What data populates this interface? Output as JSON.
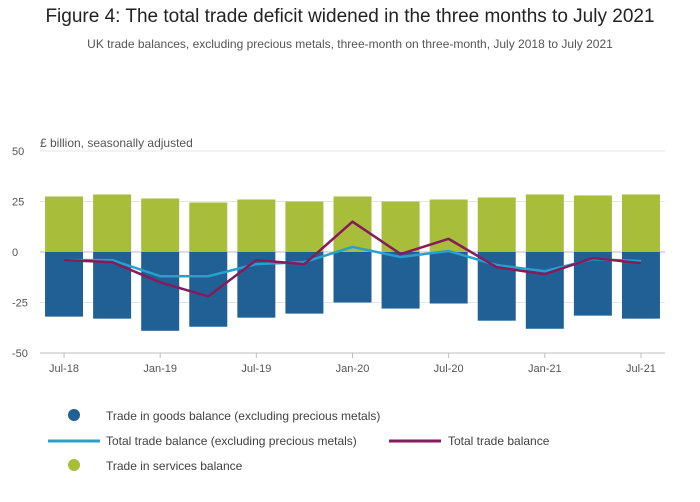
{
  "title": "Figure 4: The total trade deficit widened in the three months to July 2021",
  "subtitle": "UK trade balances, excluding precious metals, three-month on three-month, July 2018 to July 2021",
  "colors": {
    "goods": "#206095",
    "services": "#a8bd3a",
    "total_excl": "#27a0cc",
    "total": "#871a5b",
    "grid": "#e6e6e6",
    "zero_line": "#bebebe"
  },
  "chart_data": {
    "type": "bar",
    "stacked": true,
    "unit_label": "£ billion, seasonally adjusted",
    "ylim": [
      -50,
      50
    ],
    "yticks": [
      50,
      25,
      0,
      -25,
      -50
    ],
    "x_tick_labels": [
      "Jul-18",
      "Jan-19",
      "Jul-19",
      "Jan-20",
      "Jul-20",
      "Jan-21",
      "Jul-21"
    ],
    "x_tick_positions": [
      0,
      2,
      4,
      6,
      8,
      10,
      12
    ],
    "categories": [
      "Jul-18",
      "Oct-18",
      "Jan-19",
      "Apr-19",
      "Jul-19",
      "Oct-19",
      "Jan-20",
      "Apr-20",
      "Jul-20",
      "Oct-20",
      "Jan-21",
      "Apr-21",
      "Jul-21"
    ],
    "series": [
      {
        "name": "Trade in goods balance (excluding precious metals)",
        "kind": "bar",
        "values": [
          -32,
          -33,
          -39,
          -37,
          -32.5,
          -30.5,
          -25,
          -28,
          -25.5,
          -34,
          -38,
          -31.5,
          -33
        ]
      },
      {
        "name": "Trade in services balance",
        "kind": "bar",
        "values": [
          27.5,
          28.5,
          26.5,
          24.5,
          26,
          25,
          27.5,
          25,
          26,
          27,
          28.5,
          28,
          28.5
        ]
      },
      {
        "name": "Total trade balance (excluding precious metals)",
        "kind": "line",
        "values": [
          -4,
          -4,
          -12,
          -12,
          -6,
          -5,
          2.5,
          -2.5,
          0.5,
          -6.5,
          -9.5,
          -3.5,
          -4.5
        ]
      },
      {
        "name": "Total trade balance",
        "kind": "line",
        "values": [
          -4,
          -5,
          -15,
          -22,
          -4,
          -6,
          15,
          -1,
          6.5,
          -7.5,
          -11,
          -3,
          -5.5
        ]
      }
    ]
  }
}
